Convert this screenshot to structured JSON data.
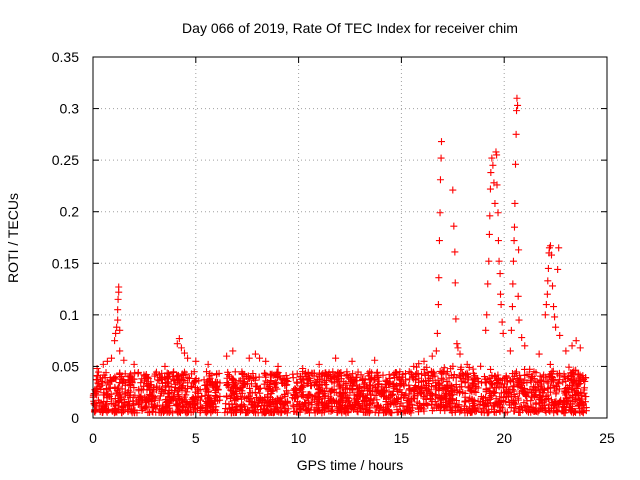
{
  "chart_data": {
    "type": "scatter",
    "title": "Day 066 of 2019, Rate Of TEC Index for receiver chim",
    "xlabel": "GPS time / hours",
    "ylabel": "ROTI / TECUs",
    "xlim": [
      0,
      25
    ],
    "ylim": [
      0,
      0.35
    ],
    "xticks": [
      "0",
      "5",
      "10",
      "15",
      "20",
      "25"
    ],
    "yticks": [
      "0",
      "0.05",
      "0.1",
      "0.15",
      "0.2",
      "0.25",
      "0.3",
      "0.35"
    ],
    "grid": true,
    "marker": "+",
    "color": "#ff0000",
    "background_band": {
      "note": "dense cloud of small ROTI values across the day",
      "segments": [
        [
          0,
          6.2
        ],
        [
          6.4,
          9.5
        ],
        [
          9.7,
          24.0
        ]
      ],
      "typical_min": 0.005,
      "typical_max": 0.045
    },
    "series": [
      {
        "name": "ROTI",
        "points": [
          [
            0.2,
            0.048
          ],
          [
            0.5,
            0.052
          ],
          [
            0.7,
            0.055
          ],
          [
            0.9,
            0.058
          ],
          [
            1.05,
            0.075
          ],
          [
            1.1,
            0.082
          ],
          [
            1.15,
            0.088
          ],
          [
            1.2,
            0.095
          ],
          [
            1.2,
            0.105
          ],
          [
            1.22,
            0.115
          ],
          [
            1.25,
            0.122
          ],
          [
            1.25,
            0.127
          ],
          [
            1.3,
            0.085
          ],
          [
            1.3,
            0.065
          ],
          [
            1.5,
            0.056
          ],
          [
            2.0,
            0.052
          ],
          [
            3.5,
            0.05
          ],
          [
            4.1,
            0.072
          ],
          [
            4.2,
            0.077
          ],
          [
            4.3,
            0.068
          ],
          [
            4.45,
            0.063
          ],
          [
            4.6,
            0.058
          ],
          [
            5.0,
            0.055
          ],
          [
            5.6,
            0.052
          ],
          [
            6.5,
            0.06
          ],
          [
            6.8,
            0.065
          ],
          [
            7.6,
            0.058
          ],
          [
            7.9,
            0.062
          ],
          [
            8.1,
            0.058
          ],
          [
            8.4,
            0.055
          ],
          [
            9.0,
            0.05
          ],
          [
            10.2,
            0.048
          ],
          [
            11.0,
            0.052
          ],
          [
            11.8,
            0.058
          ],
          [
            12.6,
            0.055
          ],
          [
            13.7,
            0.056
          ],
          [
            15.6,
            0.05
          ],
          [
            16.1,
            0.055
          ],
          [
            16.5,
            0.06
          ],
          [
            16.7,
            0.065
          ],
          [
            16.75,
            0.082
          ],
          [
            16.8,
            0.11
          ],
          [
            16.82,
            0.136
          ],
          [
            16.85,
            0.172
          ],
          [
            16.88,
            0.199
          ],
          [
            16.9,
            0.231
          ],
          [
            16.93,
            0.252
          ],
          [
            16.95,
            0.268
          ],
          [
            17.5,
            0.221
          ],
          [
            17.55,
            0.186
          ],
          [
            17.6,
            0.161
          ],
          [
            17.62,
            0.131
          ],
          [
            17.65,
            0.096
          ],
          [
            17.7,
            0.072
          ],
          [
            17.75,
            0.068
          ],
          [
            17.85,
            0.062
          ],
          [
            18.2,
            0.052
          ],
          [
            19.1,
            0.085
          ],
          [
            19.15,
            0.1
          ],
          [
            19.2,
            0.13
          ],
          [
            19.25,
            0.152
          ],
          [
            19.28,
            0.178
          ],
          [
            19.3,
            0.196
          ],
          [
            19.33,
            0.222
          ],
          [
            19.35,
            0.238
          ],
          [
            19.4,
            0.252
          ],
          [
            19.45,
            0.245
          ],
          [
            19.5,
            0.228
          ],
          [
            19.55,
            0.208
          ],
          [
            19.6,
            0.258
          ],
          [
            19.63,
            0.255
          ],
          [
            19.65,
            0.226
          ],
          [
            19.7,
            0.199
          ],
          [
            19.72,
            0.172
          ],
          [
            19.75,
            0.152
          ],
          [
            19.8,
            0.14
          ],
          [
            19.82,
            0.12
          ],
          [
            19.85,
            0.11
          ],
          [
            19.9,
            0.093
          ],
          [
            19.95,
            0.082
          ],
          [
            20.3,
            0.065
          ],
          [
            20.35,
            0.085
          ],
          [
            20.4,
            0.108
          ],
          [
            20.42,
            0.13
          ],
          [
            20.45,
            0.152
          ],
          [
            20.48,
            0.172
          ],
          [
            20.5,
            0.185
          ],
          [
            20.52,
            0.208
          ],
          [
            20.55,
            0.246
          ],
          [
            20.58,
            0.275
          ],
          [
            20.6,
            0.298
          ],
          [
            20.62,
            0.31
          ],
          [
            20.65,
            0.303
          ],
          [
            20.68,
            0.118
          ],
          [
            20.7,
            0.163
          ],
          [
            20.72,
            0.095
          ],
          [
            20.85,
            0.078
          ],
          [
            21.0,
            0.07
          ],
          [
            21.7,
            0.062
          ],
          [
            22.0,
            0.1
          ],
          [
            22.05,
            0.11
          ],
          [
            22.1,
            0.12
          ],
          [
            22.12,
            0.133
          ],
          [
            22.15,
            0.145
          ],
          [
            22.18,
            0.16
          ],
          [
            22.2,
            0.165
          ],
          [
            22.25,
            0.167
          ],
          [
            22.3,
            0.158
          ],
          [
            22.35,
            0.128
          ],
          [
            22.4,
            0.108
          ],
          [
            22.45,
            0.098
          ],
          [
            22.5,
            0.088
          ],
          [
            22.6,
            0.144
          ],
          [
            22.65,
            0.165
          ],
          [
            22.7,
            0.08
          ],
          [
            23.0,
            0.065
          ],
          [
            23.3,
            0.07
          ],
          [
            23.5,
            0.075
          ],
          [
            23.7,
            0.068
          ]
        ]
      }
    ]
  }
}
